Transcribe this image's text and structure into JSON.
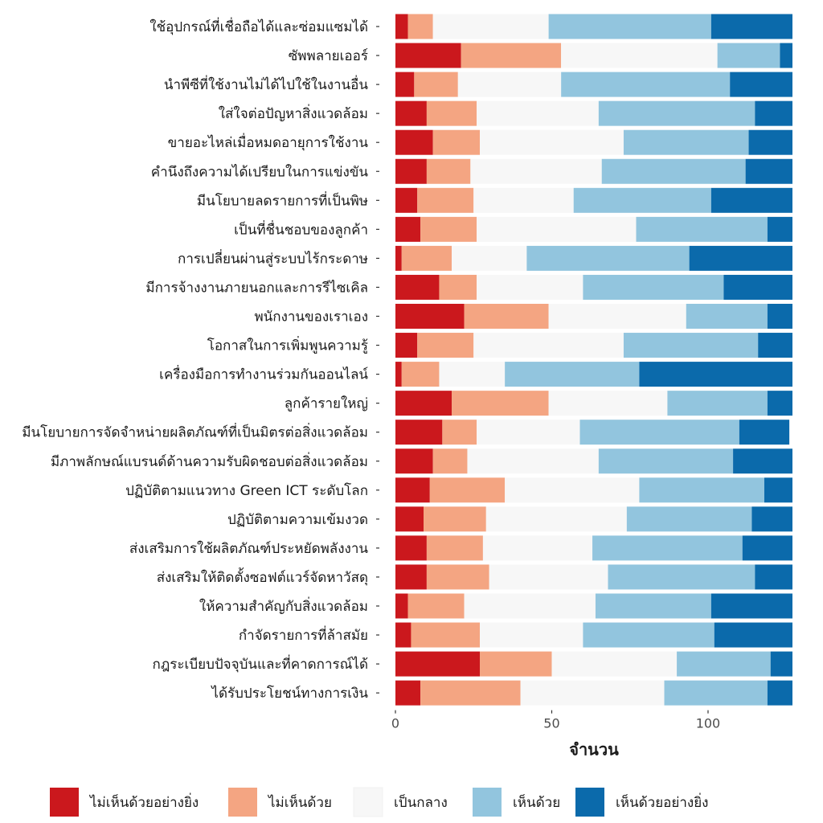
{
  "chart_data": {
    "type": "bar",
    "orientation": "horizontal",
    "stacked": true,
    "xlabel": "จำนวน",
    "ylabel": "",
    "xlim": [
      0,
      127
    ],
    "xticks": [
      0,
      50,
      100
    ],
    "grid": false,
    "legend_position": "bottom",
    "categories": [
      "ใช้อุปกรณ์ที่เชื่อถือได้และซ่อมแซมได้",
      "ซัพพลายเออร์",
      "นำพีซีที่ใช้งานไม่ได้ไปใช้ในงานอื่น",
      "ใส่ใจต่อปัญหาสิ่งแวดล้อม",
      "ขายอะไหล่เมื่อหมดอายุการใช้งาน",
      "คำนึงถึงความได้เปรียบในการแข่งขัน",
      "มีนโยบายลดรายการที่เป็นพิษ",
      "เป็นที่ชื่นชอบของลูกค้า",
      "การเปลี่ยนผ่านสู่ระบบไร้กระดาษ",
      "มีการจ้างงานภายนอกและการรีไซเคิล",
      "พนักงานของเราเอง",
      "โอกาสในการเพิ่มพูนความรู้",
      "เครื่องมือการทำงานร่วมกันออนไลน์",
      "ลูกค้ารายใหญ่",
      "มีนโยบายการจัดจำหน่ายผลิตภัณฑ์ที่เป็นมิตรต่อสิ่งแวดล้อม",
      "มีภาพลักษณ์แบรนด์ด้านความรับผิดชอบต่อสิ่งแวดล้อม",
      "ปฏิบัติตามแนวทาง Green ICT ระดับโลก",
      "ปฏิบัติตามความเข้มงวด",
      "ส่งเสริมการใช้ผลิตภัณฑ์ประหยัดพลังงาน",
      "ส่งเสริมให้ติดตั้งซอฟต์แวร์จัดหาวัสดุ",
      "ให้ความสำคัญกับสิ่งแวดล้อม",
      "กำจัดรายการที่ล้าสมัย",
      "กฎระเบียบปัจจุบันและที่คาดการณ์ได้",
      "ได้รับประโยชน์ทางการเงิน"
    ],
    "series": [
      {
        "name": "ไม่เห็นด้วยอย่างยิ่ง",
        "color": "#cb181d",
        "values": [
          4,
          21,
          6,
          10,
          12,
          10,
          7,
          8,
          2,
          14,
          22,
          7,
          2,
          18,
          15,
          12,
          11,
          9,
          10,
          10,
          4,
          5,
          27,
          8
        ]
      },
      {
        "name": "ไม่เห็นด้วย",
        "color": "#f4a582",
        "values": [
          8,
          32,
          14,
          16,
          15,
          14,
          18,
          18,
          16,
          12,
          27,
          18,
          12,
          31,
          11,
          11,
          24,
          20,
          18,
          20,
          18,
          22,
          23,
          32
        ]
      },
      {
        "name": "เป็นกลาง",
        "color": "#f7f7f7",
        "values": [
          37,
          50,
          33,
          39,
          46,
          42,
          32,
          51,
          24,
          34,
          44,
          48,
          21,
          38,
          33,
          42,
          43,
          45,
          35,
          38,
          42,
          33,
          40,
          46
        ]
      },
      {
        "name": "เห็นด้วย",
        "color": "#92c5de",
        "values": [
          52,
          20,
          54,
          50,
          40,
          46,
          44,
          42,
          52,
          45,
          26,
          43,
          43,
          32,
          51,
          43,
          40,
          40,
          48,
          47,
          37,
          42,
          30,
          33
        ]
      },
      {
        "name": "เห็นด้วยอย่างยิ่ง",
        "color": "#0b6aab",
        "values": [
          26,
          4,
          20,
          12,
          14,
          15,
          26,
          8,
          33,
          22,
          8,
          11,
          49,
          8,
          16,
          19,
          9,
          13,
          16,
          12,
          26,
          25,
          7,
          8
        ]
      }
    ]
  }
}
